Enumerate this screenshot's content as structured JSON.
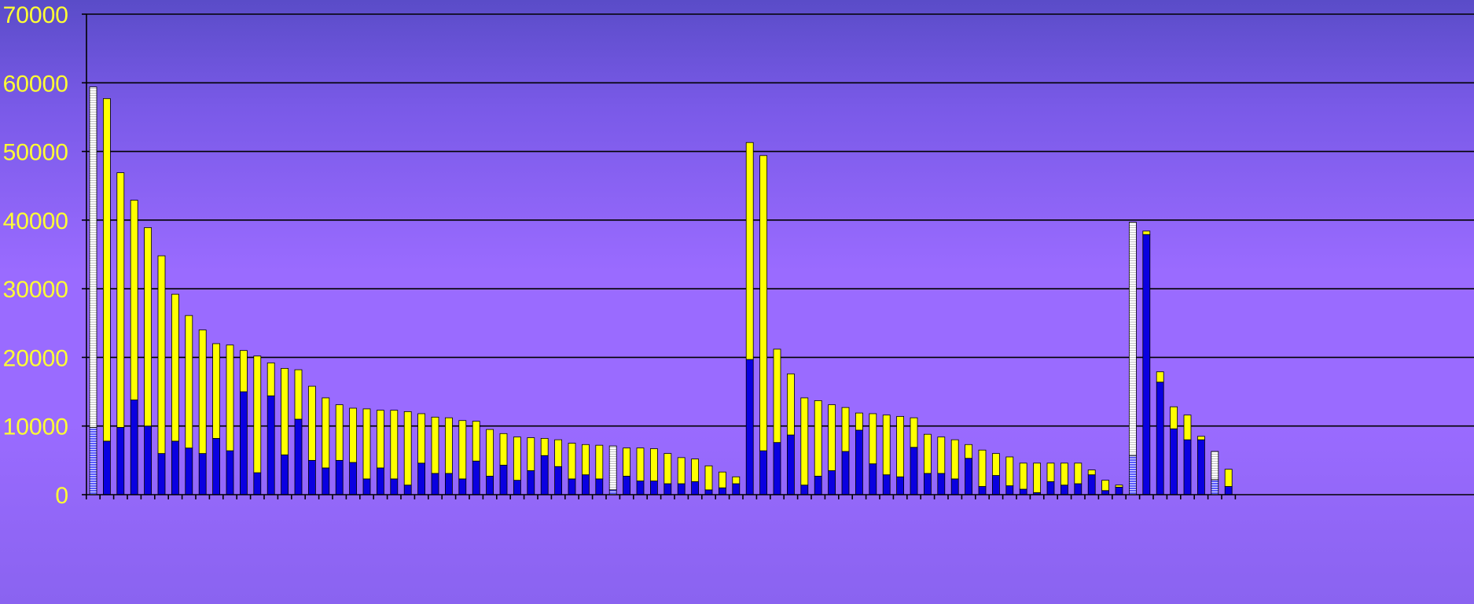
{
  "chart_data": {
    "type": "bar",
    "stacked": true,
    "ylim": [
      0,
      70000
    ],
    "yticks": [
      0,
      10000,
      20000,
      30000,
      40000,
      50000,
      60000,
      70000
    ],
    "grid": true,
    "colors": {
      "bottom": "#0a00e0",
      "top": "#ffff00",
      "highlight": "#fffbe0",
      "grid": "#000000",
      "tick_text": "#ffff33"
    },
    "series": [
      {
        "name": "",
        "values": [
          9800,
          7800,
          9800,
          13800,
          10000,
          6000,
          7800,
          6800,
          6000,
          8200,
          6400,
          15000,
          3200,
          14400,
          5800,
          11000,
          5000,
          3900,
          5000,
          4700,
          2300,
          3900,
          2300,
          1400,
          4600,
          3100,
          3100,
          2300,
          4900,
          2700,
          4300,
          2100,
          3500,
          5700,
          4100,
          2300,
          2900,
          2300,
          700,
          2700,
          2000,
          2000,
          1600,
          1600,
          1900,
          700,
          1000,
          1600,
          19700,
          6400,
          7600,
          8700,
          1400,
          2700,
          3500,
          6300,
          9400,
          4500,
          2900,
          2600,
          6900,
          3100,
          3100,
          2300,
          5300,
          1200,
          2800,
          1300,
          800,
          300,
          1900,
          1400,
          1600,
          2900,
          600,
          1100,
          5700,
          37900,
          16400,
          9600,
          8000,
          8000,
          2200,
          1200
        ]
      },
      {
        "name": "",
        "values": [
          49600,
          49900,
          37100,
          29100,
          28900,
          28800,
          21400,
          19300,
          18000,
          13800,
          15400,
          6000,
          17000,
          4800,
          12600,
          7200,
          10800,
          10200,
          8100,
          7900,
          10200,
          8400,
          10000,
          10700,
          7200,
          8200,
          8100,
          8500,
          5800,
          6800,
          4600,
          6300,
          4800,
          2500,
          3900,
          5200,
          4400,
          4900,
          6400,
          4100,
          4800,
          4700,
          4400,
          3800,
          3300,
          3500,
          2300,
          1000,
          31600,
          43000,
          13600,
          8900,
          12700,
          11000,
          9600,
          6400,
          2500,
          7300,
          8700,
          8800,
          4300,
          5700,
          5300,
          5700,
          2000,
          5300,
          3200,
          4200,
          3800,
          4300,
          2700,
          3200,
          3000,
          700,
          1500,
          300,
          34000,
          500,
          1500,
          3200,
          3600,
          500,
          4100,
          2500
        ]
      }
    ],
    "highlight_indices": [
      0,
      38,
      76,
      82
    ]
  }
}
